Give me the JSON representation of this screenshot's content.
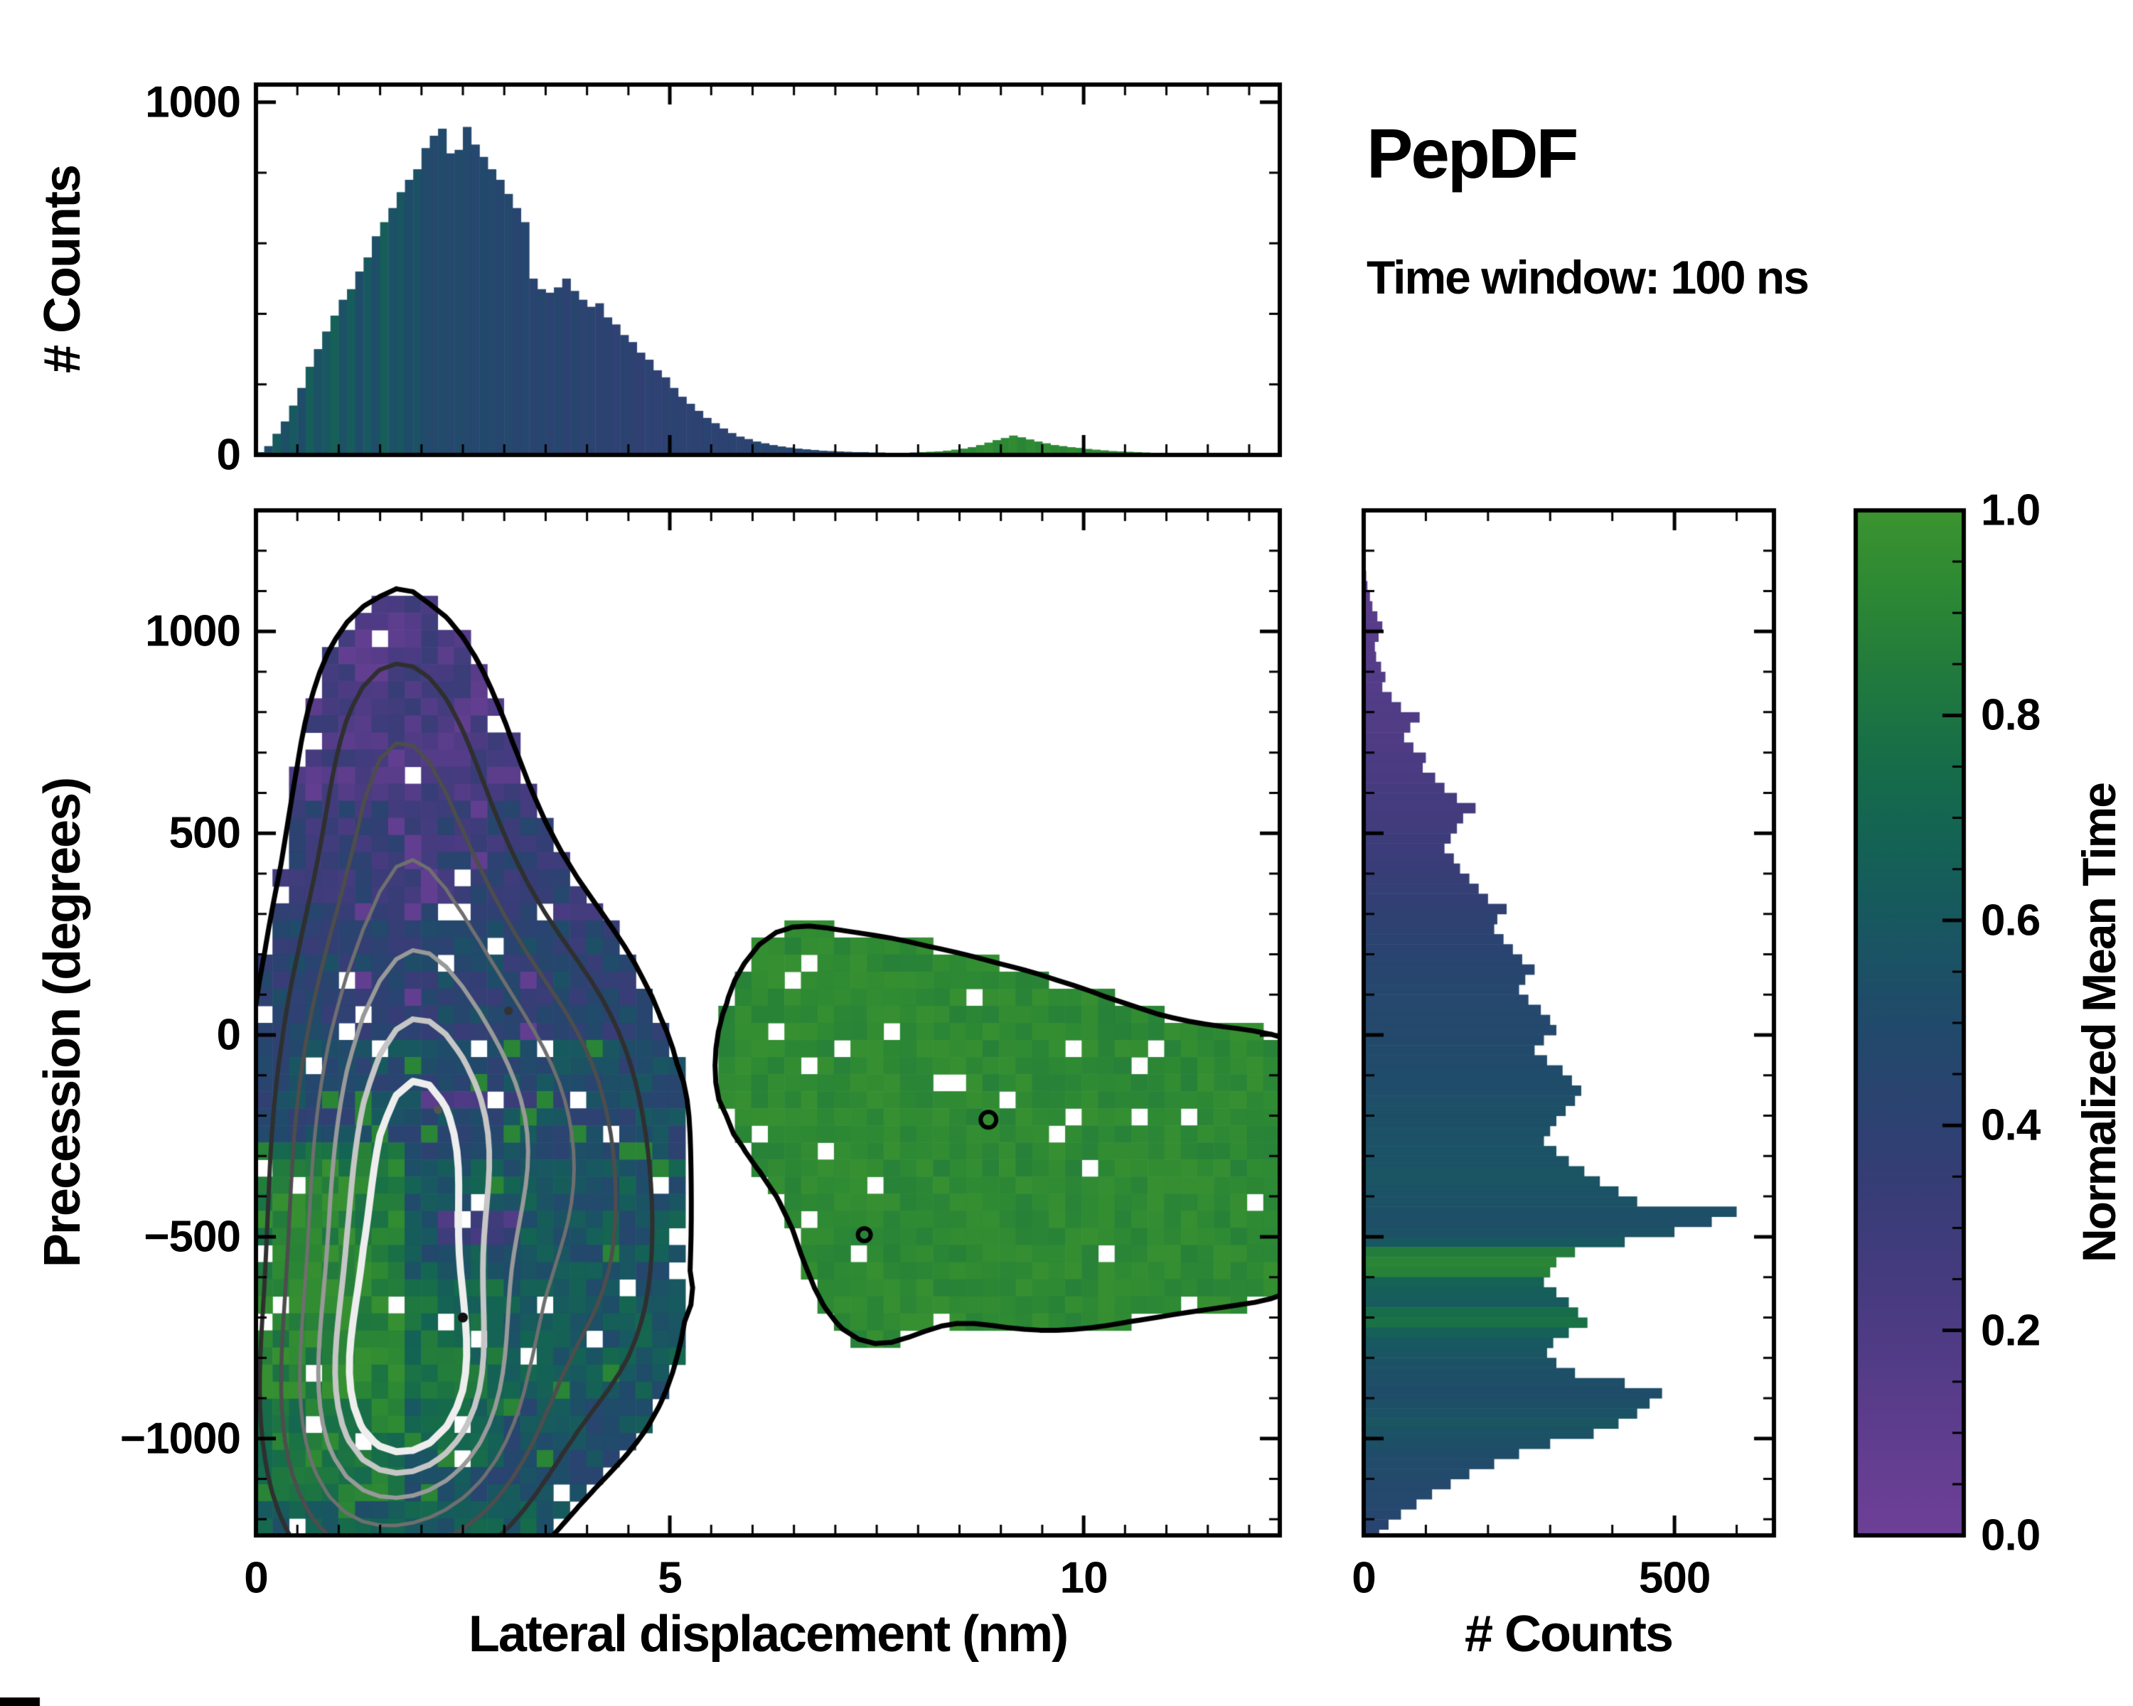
{
  "annotations": {
    "title": "PepDF",
    "subtitle": "Time window: 100 ns"
  },
  "colors": {
    "background": "#ffffff",
    "axis": "#000000",
    "green_blob": "#2e8b34",
    "colormap_stops": [
      [
        0.0,
        "#6e4098"
      ],
      [
        0.1,
        "#5f3d8e"
      ],
      [
        0.22,
        "#4a3b82"
      ],
      [
        0.34,
        "#373d76"
      ],
      [
        0.44,
        "#28456f"
      ],
      [
        0.52,
        "#1f4c69"
      ],
      [
        0.6,
        "#185860"
      ],
      [
        0.68,
        "#146354"
      ],
      [
        0.76,
        "#176e48"
      ],
      [
        0.85,
        "#237c3c"
      ],
      [
        0.93,
        "#2e8a33"
      ],
      [
        1.0,
        "#3c9430"
      ]
    ],
    "contour_colors": [
      "#000000",
      "#2f2f2f",
      "#4d4d4d",
      "#6f6f6f",
      "#999999",
      "#c6c6c6",
      "#eeeeee"
    ]
  },
  "chart_data": {
    "top_histogram": {
      "type": "bar",
      "ylabel": "# Counts",
      "x_range": [
        0,
        12.37
      ],
      "y_range": [
        0,
        1050
      ],
      "bin_width": 0.1,
      "yticks": {
        "values": [
          0,
          1000
        ],
        "labels": [
          "0",
          "1000"
        ],
        "minor_step": 200
      },
      "xticks": {
        "values": [
          0,
          5,
          10
        ],
        "labels": [],
        "minor_step": 0.5
      },
      "values": [
        8,
        25,
        60,
        95,
        140,
        190,
        250,
        300,
        350,
        395,
        440,
        470,
        520,
        560,
        620,
        660,
        700,
        745,
        780,
        810,
        870,
        905,
        925,
        855,
        865,
        930,
        880,
        845,
        810,
        780,
        740,
        700,
        660,
        500,
        470,
        460,
        475,
        500,
        465,
        440,
        420,
        430,
        390,
        370,
        340,
        320,
        290,
        270,
        240,
        220,
        190,
        165,
        145,
        125,
        105,
        90,
        75,
        62,
        52,
        45,
        38,
        33,
        28,
        24,
        21,
        18,
        16,
        14,
        12,
        11,
        10,
        9,
        8,
        8,
        7,
        7,
        6,
        6,
        6,
        7,
        8,
        9,
        10,
        12,
        15,
        18,
        22,
        28,
        35,
        42,
        48,
        55,
        50,
        44,
        38,
        33,
        28,
        25,
        22,
        20,
        17,
        15,
        13,
        11,
        10,
        9,
        8,
        7,
        6,
        5,
        5,
        4,
        4,
        3,
        3,
        3,
        2,
        2,
        2,
        2,
        1,
        1,
        1,
        1
      ],
      "mean_time": [
        0.58,
        0.52,
        0.62,
        0.54,
        0.6,
        0.52,
        0.64,
        0.55,
        0.6,
        0.66,
        0.55,
        0.63,
        0.52,
        0.6,
        0.53,
        0.65,
        0.55,
        0.58,
        0.52,
        0.55,
        0.5,
        0.48,
        0.5,
        0.47,
        0.5,
        0.48,
        0.46,
        0.49,
        0.47,
        0.45,
        0.47,
        0.44,
        0.46,
        0.43,
        0.45,
        0.42,
        0.45,
        0.4,
        0.44,
        0.41,
        0.43,
        0.4,
        0.42,
        0.39,
        0.42,
        0.4,
        0.38,
        0.41,
        0.39,
        0.4,
        0.42,
        0.4,
        0.41,
        0.4,
        0.42,
        0.41,
        0.4,
        0.42,
        0.41,
        0.4,
        0.45,
        0.44,
        0.45,
        0.44,
        0.45,
        0.44,
        0.45,
        0.44,
        0.45,
        0.44,
        0.5,
        0.5,
        0.5,
        0.5,
        0.5,
        0.5,
        0.5,
        0.5,
        0.5,
        0.5,
        0.93,
        0.9,
        0.94,
        0.91,
        0.95,
        0.92,
        0.9,
        0.93,
        0.95,
        0.91,
        0.92,
        0.94,
        0.9,
        0.93,
        0.91,
        0.95,
        0.92,
        0.9,
        0.94,
        0.92,
        0.91,
        0.93,
        0.9,
        0.92,
        0.94,
        0.91,
        0.93,
        0.9,
        0.92,
        0.91,
        0.9,
        0.92,
        0.91,
        0.9,
        0.92,
        0.91,
        0.9,
        0.91,
        0.9,
        0.9,
        0.9,
        0.9,
        0.9,
        0.9
      ]
    },
    "right_histogram": {
      "type": "bar",
      "orientation": "horizontal",
      "xlabel": "# Counts",
      "x_range": [
        0,
        660
      ],
      "y_range": [
        -1240,
        1300
      ],
      "bin_height": 25,
      "y_start": 1150,
      "xticks": {
        "values": [
          0,
          500
        ],
        "labels": [
          "0",
          "500"
        ],
        "minor_step": 100
      },
      "values": [
        4,
        6,
        10,
        14,
        22,
        30,
        24,
        18,
        20,
        28,
        35,
        30,
        45,
        60,
        90,
        75,
        65,
        80,
        100,
        95,
        115,
        130,
        150,
        180,
        160,
        150,
        140,
        130,
        145,
        155,
        170,
        185,
        200,
        230,
        215,
        210,
        225,
        240,
        255,
        275,
        260,
        250,
        265,
        285,
        300,
        310,
        290,
        275,
        295,
        320,
        335,
        350,
        340,
        325,
        310,
        300,
        290,
        310,
        330,
        355,
        380,
        410,
        440,
        600,
        560,
        500,
        420,
        340,
        310,
        300,
        290,
        310,
        330,
        345,
        360,
        330,
        305,
        295,
        310,
        340,
        420,
        480,
        460,
        440,
        410,
        370,
        300,
        250,
        210,
        170,
        140,
        110,
        85,
        60,
        40,
        25,
        14,
        6
      ],
      "mean_time": [
        0.12,
        0.12,
        0.13,
        0.12,
        0.14,
        0.15,
        0.13,
        0.14,
        0.15,
        0.16,
        0.17,
        0.16,
        0.18,
        0.18,
        0.19,
        0.18,
        0.2,
        0.2,
        0.22,
        0.22,
        0.23,
        0.24,
        0.25,
        0.26,
        0.27,
        0.28,
        0.3,
        0.3,
        0.32,
        0.33,
        0.35,
        0.36,
        0.37,
        0.38,
        0.4,
        0.4,
        0.42,
        0.42,
        0.44,
        0.44,
        0.45,
        0.46,
        0.46,
        0.47,
        0.48,
        0.48,
        0.49,
        0.5,
        0.5,
        0.51,
        0.52,
        0.52,
        0.53,
        0.54,
        0.54,
        0.55,
        0.55,
        0.56,
        0.56,
        0.57,
        0.57,
        0.56,
        0.55,
        0.54,
        0.53,
        0.55,
        0.6,
        0.85,
        0.9,
        0.88,
        0.68,
        0.64,
        0.62,
        0.75,
        0.78,
        0.66,
        0.6,
        0.58,
        0.55,
        0.54,
        0.53,
        0.52,
        0.54,
        0.56,
        0.58,
        0.56,
        0.54,
        0.52,
        0.5,
        0.5,
        0.48,
        0.47,
        0.46,
        0.45,
        0.44,
        0.43,
        0.42,
        0.4
      ]
    },
    "joint_heatmap": {
      "type": "heatmap",
      "xlabel": "Lateral displacement (nm)",
      "ylabel": "Precession (degrees)",
      "x_range": [
        0,
        12.37
      ],
      "y_range": [
        -1240,
        1300
      ],
      "grid": {
        "nx": 62,
        "ny": 60
      },
      "xticks": {
        "values": [
          0,
          5,
          10
        ],
        "labels": [
          "0",
          "5",
          "10"
        ],
        "minor_step": 0.5
      },
      "yticks": {
        "values": [
          1000,
          500,
          0,
          -500,
          -1000
        ],
        "labels": [
          "1000",
          "500",
          "0",
          "−500",
          "−1000"
        ],
        "minor_step": 100
      },
      "mask_threshold": 0.16,
      "hole_fraction": 0.05,
      "pop_fraction": 0.05,
      "noise_span": 0.24,
      "seed": 11,
      "green_region_min_x": 5.5,
      "gaussians_main": [
        {
          "x": 2.1,
          "y": -470,
          "sx": 1.05,
          "sy": 470,
          "a": 0.68
        },
        {
          "x": 2.15,
          "y": -950,
          "sx": 0.95,
          "sy": 240,
          "a": 0.45
        },
        {
          "x": 2.05,
          "y": 280,
          "sx": 0.95,
          "sy": 400,
          "a": 0.35
        },
        {
          "x": 1.65,
          "y": 780,
          "sx": 0.75,
          "sy": 270,
          "a": 0.22
        },
        {
          "x": 3.75,
          "y": -180,
          "sx": 0.95,
          "sy": 330,
          "a": 0.34
        },
        {
          "x": 4.35,
          "y": -680,
          "sx": 0.75,
          "sy": 300,
          "a": 0.22
        },
        {
          "x": 1.1,
          "y": -350,
          "sx": 0.8,
          "sy": 500,
          "a": 0.3
        },
        {
          "x": 0.9,
          "y": -1050,
          "sx": 0.8,
          "sy": 300,
          "a": 0.25
        }
      ],
      "gaussians_green": [
        {
          "x": 6.35,
          "y": -20,
          "sx": 0.5,
          "sy": 200,
          "a": 0.3
        },
        {
          "x": 7.15,
          "y": -110,
          "sx": 0.62,
          "sy": 230,
          "a": 0.33
        },
        {
          "x": 8.0,
          "y": -200,
          "sx": 0.7,
          "sy": 250,
          "a": 0.34
        },
        {
          "x": 8.9,
          "y": -270,
          "sx": 0.8,
          "sy": 260,
          "a": 0.36
        },
        {
          "x": 9.8,
          "y": -310,
          "sx": 0.85,
          "sy": 250,
          "a": 0.35
        },
        {
          "x": 10.8,
          "y": -330,
          "sx": 0.85,
          "sy": 220,
          "a": 0.33
        },
        {
          "x": 11.8,
          "y": -330,
          "sx": 0.75,
          "sy": 200,
          "a": 0.32
        },
        {
          "x": 12.5,
          "y": -320,
          "sx": 0.6,
          "sy": 190,
          "a": 0.3
        },
        {
          "x": 7.4,
          "y": -530,
          "sx": 0.55,
          "sy": 190,
          "a": 0.26
        }
      ],
      "diamonds": [
        {
          "x": 1.75,
          "y": 1045
        },
        {
          "x": 0.75,
          "y": -1200
        },
        {
          "x": 5.05,
          "y": -640
        },
        {
          "x": 10.05,
          "y": -10
        }
      ],
      "diamond_bump": {
        "sx": 0.09,
        "sy": 20,
        "a": 0.2
      },
      "contours": {
        "levels": [
          0.16,
          0.3,
          0.44,
          0.58,
          0.72,
          0.84,
          0.93
        ],
        "widths": [
          7,
          6,
          5.5,
          5,
          6,
          8,
          10
        ]
      },
      "color_field": {
        "base_levels": [
          [
            600,
            0.22
          ],
          [
            300,
            0.34
          ],
          [
            0,
            0.44
          ],
          [
            -300,
            0.5
          ],
          [
            -600,
            0.58
          ],
          [
            -900,
            0.6
          ],
          [
            -100000,
            0.52
          ]
        ],
        "patches": [
          {
            "x0": 0,
            "x1": 1.7,
            "y0": -1150,
            "y1": -250,
            "dc": 0.3
          },
          {
            "x0": 1.7,
            "x1": 2.9,
            "y0": -1050,
            "y1": -600,
            "dc": 0.15
          },
          {
            "x0": 2.0,
            "x1": 3.3,
            "y0": -200,
            "y1": -120,
            "dc": -0.28
          },
          {
            "x0": 2.1,
            "x1": 3.1,
            "y0": -500,
            "y1": -420,
            "dc": -0.3
          },
          {
            "x0": 0,
            "x1": 3.5,
            "y0": -1240,
            "y1": -1150,
            "dc": 0.12
          }
        ]
      },
      "dots": [
        {
          "x": 2.5,
          "y": -700,
          "r": 7,
          "fill": "#111111"
        },
        {
          "x": 3.05,
          "y": 60,
          "r": 6,
          "fill": "#333333"
        },
        {
          "x": 2.2,
          "y": -185,
          "r": 6,
          "fill": "#555555"
        },
        {
          "x": 8.85,
          "y": -210,
          "r": 11,
          "ring": true
        },
        {
          "x": 7.35,
          "y": -495,
          "r": 9,
          "ring": true
        }
      ]
    },
    "colorbar": {
      "label": "Normalized Mean Time",
      "range": [
        0,
        1
      ],
      "ticks": {
        "values": [
          1.0,
          0.8,
          0.6,
          0.4,
          0.2,
          0.0
        ],
        "labels": [
          "1.0",
          "0.8",
          "0.6",
          "0.4",
          "0.2",
          "0.0"
        ],
        "minor_step": 0.05
      }
    }
  }
}
